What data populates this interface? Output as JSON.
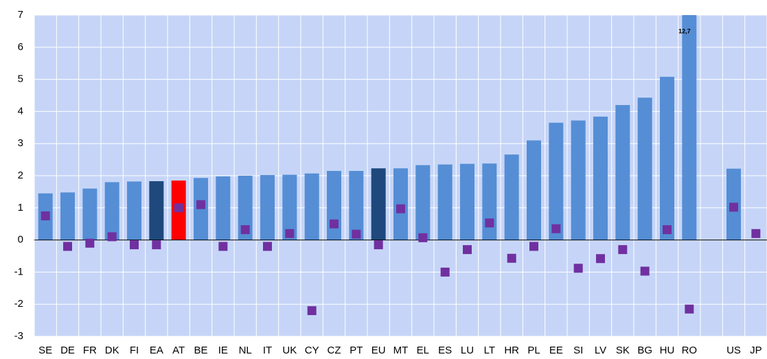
{
  "chart_data": {
    "type": "bar",
    "categories": [
      "SE",
      "DE",
      "FR",
      "DK",
      "FI",
      "EA",
      "AT",
      "BE",
      "IE",
      "NL",
      "IT",
      "UK",
      "CY",
      "CZ",
      "PT",
      "EU",
      "MT",
      "EL",
      "ES",
      "LU",
      "LT",
      "HR",
      "PL",
      "EE",
      "SI",
      "LV",
      "SK",
      "BG",
      "HU",
      "RO",
      null,
      "US",
      "JP"
    ],
    "series": [
      {
        "type": "bar",
        "color": "#558ed5",
        "values": [
          1.45,
          1.48,
          1.6,
          1.8,
          1.82,
          1.83,
          1.85,
          1.93,
          1.98,
          2.0,
          2.02,
          2.03,
          2.07,
          2.15,
          2.15,
          2.23,
          2.23,
          2.33,
          2.35,
          2.37,
          2.38,
          2.66,
          3.1,
          3.65,
          3.72,
          3.84,
          4.2,
          4.43,
          5.08,
          12.7,
          null,
          2.22,
          null
        ],
        "value_labels": [
          null,
          null,
          null,
          null,
          null,
          null,
          null,
          null,
          null,
          null,
          null,
          null,
          null,
          null,
          null,
          null,
          null,
          null,
          null,
          null,
          null,
          null,
          null,
          null,
          null,
          null,
          null,
          null,
          null,
          "12,7",
          null,
          null,
          null
        ],
        "colors": [
          "#558ed5",
          "#558ed5",
          "#558ed5",
          "#558ed5",
          "#558ed5",
          "#1f497d",
          "#ff0000",
          "#558ed5",
          "#558ed5",
          "#558ed5",
          "#558ed5",
          "#558ed5",
          "#558ed5",
          "#558ed5",
          "#558ed5",
          "#1f497d",
          "#558ed5",
          "#558ed5",
          "#558ed5",
          "#558ed5",
          "#558ed5",
          "#558ed5",
          "#558ed5",
          "#558ed5",
          "#558ed5",
          "#558ed5",
          "#558ed5",
          "#558ed5",
          "#558ed5",
          "#558ed5",
          "#558ed5",
          "#558ed5",
          "#558ed5"
        ]
      },
      {
        "type": "scatter",
        "color": "#7030a0",
        "values": [
          0.75,
          -0.2,
          -0.1,
          0.1,
          -0.15,
          -0.15,
          1.0,
          1.1,
          -0.2,
          0.32,
          -0.2,
          0.2,
          -2.2,
          0.5,
          0.18,
          -0.15,
          0.97,
          0.07,
          -1.0,
          -0.3,
          0.53,
          -0.57,
          -0.2,
          0.35,
          -0.88,
          -0.58,
          -0.3,
          -0.97,
          0.32,
          -2.15,
          null,
          1.02,
          0.2
        ]
      }
    ],
    "ylim": [
      -3,
      7
    ],
    "yticks": [
      -3,
      -2,
      -1,
      0,
      1,
      2,
      3,
      4,
      5,
      6,
      7
    ],
    "grid": true,
    "background": "#c6d5f7"
  }
}
